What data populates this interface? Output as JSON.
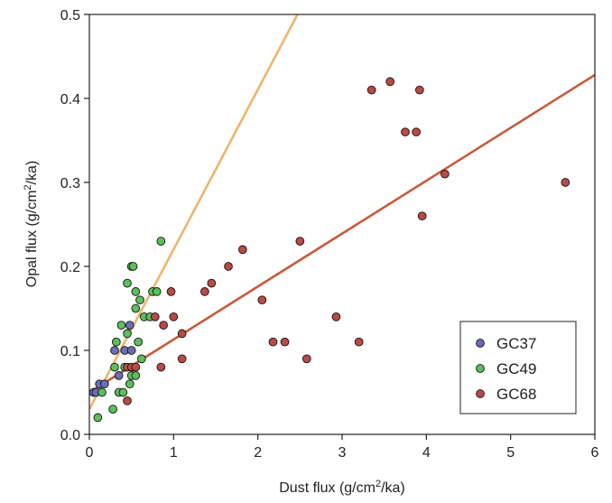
{
  "chart_data": {
    "type": "scatter",
    "xlabel": {
      "main": "Dust flux (g/cm",
      "sup": "2",
      "tail": "/ka)"
    },
    "ylabel": {
      "main": "Opal flux (g/cm",
      "sup": "2",
      "tail": "/ka)"
    },
    "xlim": [
      0,
      6
    ],
    "ylim": [
      0,
      0.5
    ],
    "x_ticks": [
      0,
      1,
      2,
      3,
      4,
      5,
      6
    ],
    "y_ticks": [
      0.0,
      0.1,
      0.2,
      0.3,
      0.4,
      0.5
    ],
    "x_tick_labels": [
      "0",
      "1",
      "2",
      "3",
      "4",
      "5",
      "6"
    ],
    "y_tick_labels": [
      "0.0",
      "0.1",
      "0.2",
      "0.3",
      "0.4",
      "0.5"
    ],
    "legend_position": "bottom-right",
    "series": [
      {
        "name": "GC37",
        "color": "#6a6fb4",
        "points": [
          [
            0.05,
            0.05
          ],
          [
            0.08,
            0.05
          ],
          [
            0.12,
            0.06
          ],
          [
            0.18,
            0.06
          ],
          [
            0.3,
            0.1
          ],
          [
            0.35,
            0.07
          ],
          [
            0.42,
            0.1
          ],
          [
            0.48,
            0.13
          ],
          [
            0.5,
            0.1
          ]
        ]
      },
      {
        "name": "GC49",
        "color": "#5cbf5a",
        "points": [
          [
            0.1,
            0.02
          ],
          [
            0.15,
            0.05
          ],
          [
            0.28,
            0.03
          ],
          [
            0.3,
            0.08
          ],
          [
            0.32,
            0.11
          ],
          [
            0.35,
            0.05
          ],
          [
            0.38,
            0.13
          ],
          [
            0.4,
            0.05
          ],
          [
            0.42,
            0.08
          ],
          [
            0.45,
            0.12
          ],
          [
            0.45,
            0.18
          ],
          [
            0.48,
            0.06
          ],
          [
            0.5,
            0.07
          ],
          [
            0.5,
            0.2
          ],
          [
            0.52,
            0.2
          ],
          [
            0.55,
            0.07
          ],
          [
            0.55,
            0.15
          ],
          [
            0.55,
            0.17
          ],
          [
            0.58,
            0.11
          ],
          [
            0.6,
            0.16
          ],
          [
            0.62,
            0.09
          ],
          [
            0.65,
            0.14
          ],
          [
            0.72,
            0.14
          ],
          [
            0.75,
            0.17
          ],
          [
            0.8,
            0.17
          ],
          [
            0.85,
            0.23
          ]
        ]
      },
      {
        "name": "GC68",
        "color": "#b94a44",
        "points": [
          [
            0.45,
            0.04
          ],
          [
            0.45,
            0.08
          ],
          [
            0.5,
            0.08
          ],
          [
            0.55,
            0.08
          ],
          [
            0.78,
            0.14
          ],
          [
            0.85,
            0.08
          ],
          [
            0.88,
            0.13
          ],
          [
            0.97,
            0.17
          ],
          [
            1.0,
            0.14
          ],
          [
            1.1,
            0.12
          ],
          [
            1.1,
            0.09
          ],
          [
            1.37,
            0.17
          ],
          [
            1.45,
            0.18
          ],
          [
            1.65,
            0.2
          ],
          [
            1.82,
            0.22
          ],
          [
            2.05,
            0.16
          ],
          [
            2.18,
            0.11
          ],
          [
            2.32,
            0.11
          ],
          [
            2.5,
            0.23
          ],
          [
            2.58,
            0.09
          ],
          [
            2.93,
            0.14
          ],
          [
            3.2,
            0.11
          ],
          [
            3.35,
            0.41
          ],
          [
            3.57,
            0.42
          ],
          [
            3.75,
            0.36
          ],
          [
            3.88,
            0.36
          ],
          [
            3.92,
            0.41
          ],
          [
            3.95,
            0.26
          ],
          [
            4.22,
            0.31
          ],
          [
            5.65,
            0.3
          ]
        ]
      }
    ],
    "fit_lines": [
      {
        "color": "#f0b46c",
        "x": [
          0,
          2.47
        ],
        "y": [
          0.03,
          0.5
        ]
      },
      {
        "color": "#c85a3c",
        "x": [
          0,
          6
        ],
        "y": [
          0.05,
          0.428
        ]
      }
    ]
  }
}
